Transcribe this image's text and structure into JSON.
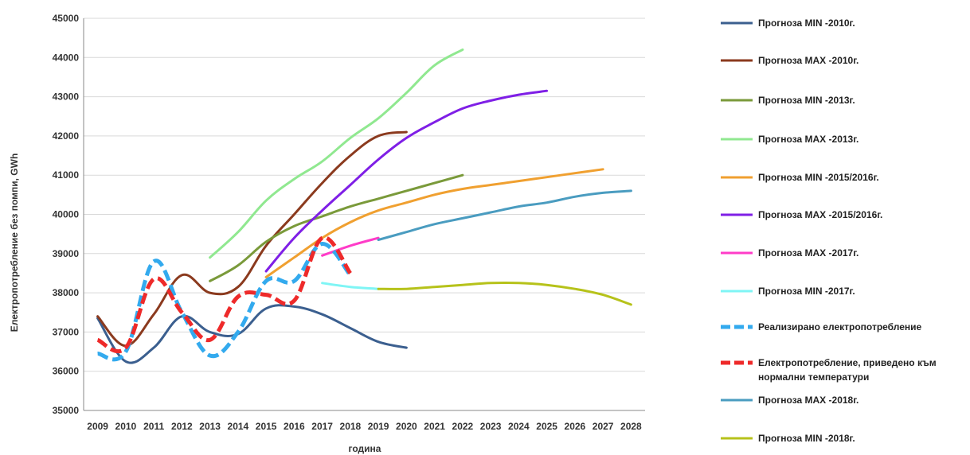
{
  "chart_data": {
    "type": "line",
    "title": "",
    "xlabel": "година",
    "ylabel": "Електропотребление без помпи, GWh",
    "ylim": [
      35000,
      45000
    ],
    "yticks": [
      "35000",
      "36000",
      "37000",
      "38000",
      "39000",
      "40000",
      "41000",
      "42000",
      "43000",
      "44000",
      "45000"
    ],
    "categories": [
      "2009",
      "2010",
      "2011",
      "2012",
      "2013",
      "2014",
      "2015",
      "2016",
      "2017",
      "2018",
      "2019",
      "2020",
      "2021",
      "2022",
      "2023",
      "2024",
      "2025",
      "2026",
      "2027",
      "2028"
    ],
    "grid": true,
    "legend_position": "right",
    "series": [
      {
        "name": "Прогноза MIN -2010г.",
        "color": "#3b5f8f",
        "dashed": false,
        "values": [
          37350,
          36250,
          36600,
          37400,
          37000,
          36950,
          37600,
          37650,
          37450,
          37100,
          36750,
          36600,
          null,
          null,
          null,
          null,
          null,
          null,
          null,
          null
        ]
      },
      {
        "name": "Прогноза MAX -2010г.",
        "color": "#8b3a1e",
        "dashed": false,
        "values": [
          37400,
          36650,
          37450,
          38450,
          38000,
          38150,
          39200,
          40000,
          40800,
          41500,
          42000,
          42100,
          null,
          null,
          null,
          null,
          null,
          null,
          null,
          null
        ]
      },
      {
        "name": "Прогноза MIN -2013г.",
        "color": "#7a9a3a",
        "dashed": false,
        "values": [
          null,
          null,
          null,
          null,
          38300,
          38700,
          39300,
          39700,
          39950,
          40200,
          40400,
          40600,
          40800,
          41000,
          null,
          null,
          null,
          null,
          null,
          null
        ]
      },
      {
        "name": "Прогноза MAX -2013г.",
        "color": "#90e890",
        "dashed": false,
        "values": [
          null,
          null,
          null,
          null,
          38900,
          39550,
          40350,
          40900,
          41350,
          41950,
          42450,
          43100,
          43800,
          44200,
          null,
          null,
          null,
          null,
          null,
          null
        ]
      },
      {
        "name": "Прогноза MIN -2015/2016г.",
        "color": "#f0a030",
        "dashed": false,
        "values": [
          null,
          null,
          null,
          null,
          null,
          null,
          38400,
          38900,
          39400,
          39800,
          40100,
          40300,
          40500,
          40650,
          40750,
          40850,
          40950,
          41050,
          41150,
          null
        ]
      },
      {
        "name": "Прогноза MAX -2015/2016г.",
        "color": "#7f1fe6",
        "dashed": false,
        "values": [
          null,
          null,
          null,
          null,
          null,
          null,
          38550,
          39400,
          40100,
          40750,
          41400,
          41950,
          42350,
          42700,
          42900,
          43050,
          43150,
          null,
          null,
          null
        ]
      },
      {
        "name": "Прогноза MAX -2017г.",
        "color": "#ff3cc8",
        "dashed": false,
        "values": [
          null,
          null,
          null,
          null,
          null,
          null,
          null,
          null,
          38950,
          39200,
          39400,
          null,
          null,
          null,
          null,
          null,
          null,
          null,
          null,
          null
        ]
      },
      {
        "name": "Прогноза MIN -2017г.",
        "color": "#7ff5f5",
        "dashed": false,
        "values": [
          null,
          null,
          null,
          null,
          null,
          null,
          null,
          null,
          38250,
          38150,
          38100,
          null,
          null,
          null,
          null,
          null,
          null,
          null,
          null,
          null
        ]
      },
      {
        "name": "Реализирано електропотребление",
        "color": "#33aaee",
        "dashed": true,
        "values": [
          36450,
          36500,
          38800,
          37500,
          36400,
          37000,
          38300,
          38300,
          39250,
          38450,
          null,
          null,
          null,
          null,
          null,
          null,
          null,
          null,
          null,
          null
        ]
      },
      {
        "name": "Електропотребление, приведено към нормални температури",
        "color": "#ee2a2a",
        "dashed": true,
        "values": [
          36800,
          36600,
          38350,
          37500,
          36800,
          37900,
          37950,
          37800,
          39400,
          38500,
          null,
          null,
          null,
          null,
          null,
          null,
          null,
          null,
          null,
          null
        ]
      },
      {
        "name": "Прогноза MAX -2018г.",
        "color": "#4a9cc0",
        "dashed": false,
        "values": [
          null,
          null,
          null,
          null,
          null,
          null,
          null,
          null,
          null,
          null,
          39350,
          39550,
          39750,
          39900,
          40050,
          40200,
          40300,
          40450,
          40550,
          40600
        ]
      },
      {
        "name": "Прогноза MIN -2018г.",
        "color": "#b6c21a",
        "dashed": false,
        "values": [
          null,
          null,
          null,
          null,
          null,
          null,
          null,
          null,
          null,
          null,
          38100,
          38100,
          38150,
          38200,
          38250,
          38250,
          38200,
          38100,
          37950,
          37700
        ]
      }
    ]
  }
}
